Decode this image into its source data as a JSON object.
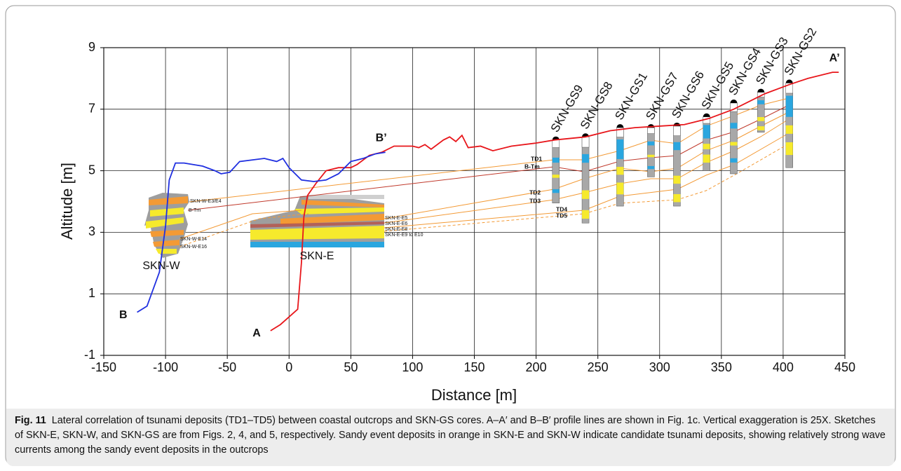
{
  "chart_data": {
    "type": "line",
    "xlabel": "Distance [m]",
    "ylabel": "Altitude [m]",
    "xlim": [
      -150,
      450
    ],
    "ylim": [
      -1,
      9
    ],
    "xticks": [
      -150,
      -100,
      -50,
      0,
      50,
      100,
      150,
      200,
      250,
      300,
      350,
      400,
      450
    ],
    "yticks": [
      -1,
      1,
      3,
      5,
      7,
      9
    ],
    "grid": true,
    "series": [
      {
        "start_label": "A",
        "end_label": "A’",
        "color": "#e8161b",
        "x": [
          -15,
          -7,
          7,
          10,
          12,
          15,
          22,
          30,
          40,
          50,
          55,
          65,
          75,
          85,
          100,
          105,
          110,
          115,
          125,
          130,
          135,
          140,
          145,
          155,
          165,
          180,
          200,
          215,
          240,
          260,
          280,
          300,
          320,
          340,
          360,
          385,
          405,
          420,
          440,
          445
        ],
        "values": [
          -0.2,
          0,
          0.5,
          2.0,
          3.5,
          4.2,
          4.6,
          5.0,
          5.1,
          5.1,
          5.2,
          5.5,
          5.6,
          5.8,
          5.8,
          5.75,
          5.85,
          5.7,
          6.0,
          6.1,
          5.95,
          6.15,
          5.75,
          5.8,
          5.65,
          5.8,
          5.9,
          6.0,
          6.1,
          6.3,
          6.4,
          6.45,
          6.5,
          6.7,
          7.0,
          7.5,
          7.8,
          8.0,
          8.2,
          8.2
        ]
      },
      {
        "start_label": "B",
        "end_label": "B’",
        "color": "#1f2fe0",
        "x": [
          -123,
          -115,
          -105,
          -100,
          -97,
          -92,
          -85,
          -70,
          -60,
          -55,
          -48,
          -40,
          -30,
          -20,
          -10,
          -5,
          0,
          10,
          20,
          30,
          40,
          50,
          60,
          70,
          78
        ],
        "values": [
          0.4,
          0.6,
          1.7,
          3.2,
          4.7,
          5.25,
          5.25,
          5.15,
          5.0,
          4.9,
          4.95,
          5.3,
          5.35,
          5.4,
          5.3,
          5.4,
          5.1,
          4.7,
          4.65,
          4.7,
          4.9,
          5.3,
          5.4,
          5.55,
          5.6
        ]
      }
    ],
    "cores": [
      {
        "name": "SKN-GS9",
        "x": 216,
        "top": 6.0,
        "bottom": 3.95
      },
      {
        "name": "SKN-GS8",
        "x": 240,
        "top": 6.1,
        "bottom": 3.3
      },
      {
        "name": "SKN-GS1",
        "x": 268,
        "top": 6.4,
        "bottom": 3.85
      },
      {
        "name": "SKN-GS7",
        "x": 293,
        "top": 6.4,
        "bottom": 4.8
      },
      {
        "name": "SKN-GS6",
        "x": 314,
        "top": 6.45,
        "bottom": 3.85
      },
      {
        "name": "SKN-GS5",
        "x": 338,
        "top": 6.75,
        "bottom": 5.0
      },
      {
        "name": "SKN-GS4",
        "x": 360,
        "top": 7.2,
        "bottom": 4.9
      },
      {
        "name": "SKN-GS3",
        "x": 382,
        "top": 7.55,
        "bottom": 6.25
      },
      {
        "name": "SKN-GS2",
        "x": 405,
        "top": 7.85,
        "bottom": 5.1
      }
    ],
    "annotations": [
      "TD1",
      "B-Tm",
      "TD2",
      "TD3",
      "TD4",
      "TD5"
    ],
    "outcrops": [
      {
        "name": "SKN-W",
        "units": [
          "SKN-W-E3/E4",
          "B-Tm",
          "SKN-W-E14",
          "SKN-W-E16"
        ]
      },
      {
        "name": "SKN-E",
        "units": [
          "SKN-E-E5",
          "SKN-E-E6",
          "SKN-E-E8",
          "SKN-E-E9 to E10"
        ]
      }
    ]
  },
  "caption": {
    "label": "Fig. 11",
    "text": "Lateral correlation of tsunami deposits (TD1–TD5) between coastal outcrops and SKN-GS cores. A–A′ and B–B′ profile lines are shown in Fig. 1c. Vertical exaggeration is 25X. Sketches of SKN-E, SKN-W, and SKN-GS are from Figs. 2, 4, and 5, respectively. Sandy event deposits in orange in SKN-E and SKN-W indicate candidate tsunami deposits, showing relatively strong wave currents among the sandy event deposits in the outcrops"
  }
}
